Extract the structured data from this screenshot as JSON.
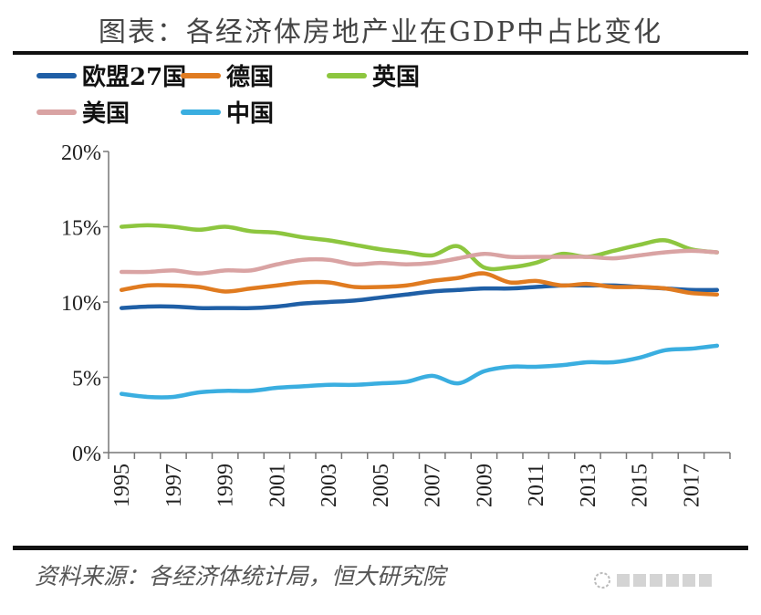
{
  "chart_data": {
    "type": "line",
    "title": "图表：各经济体房地产业在GDP中占比变化",
    "source": "资料来源：各经济体统计局，恒大研究院",
    "watermark": "夏磊地产观察",
    "x": [
      1995,
      1996,
      1997,
      1998,
      1999,
      2000,
      2001,
      2002,
      2003,
      2004,
      2005,
      2006,
      2007,
      2008,
      2009,
      2010,
      2011,
      2012,
      2013,
      2014,
      2015,
      2016,
      2017,
      2018
    ],
    "xtick_labels": [
      "1995",
      "1997",
      "1999",
      "2001",
      "2003",
      "2005",
      "2007",
      "2009",
      "2011",
      "2013",
      "2015",
      "2017"
    ],
    "ylim": [
      0,
      20
    ],
    "yticks": [
      "0%",
      "5%",
      "10%",
      "15%",
      "20%"
    ],
    "grid": false,
    "legend_position": "top",
    "series": [
      {
        "name": "欧盟27国",
        "color": "#1f5fa6",
        "values": [
          9.6,
          9.7,
          9.7,
          9.6,
          9.6,
          9.6,
          9.7,
          9.9,
          10.0,
          10.1,
          10.3,
          10.5,
          10.7,
          10.8,
          10.9,
          10.9,
          11.0,
          11.1,
          11.1,
          11.1,
          11.0,
          10.9,
          10.8,
          10.8
        ]
      },
      {
        "name": "德国",
        "color": "#e07b20",
        "values": [
          10.8,
          11.1,
          11.1,
          11.0,
          10.7,
          10.9,
          11.1,
          11.3,
          11.3,
          11.0,
          11.0,
          11.1,
          11.4,
          11.6,
          11.9,
          11.3,
          11.4,
          11.1,
          11.2,
          11.0,
          11.0,
          10.9,
          10.6,
          10.5
        ]
      },
      {
        "name": "英国",
        "color": "#8dc63f",
        "values": [
          15.0,
          15.1,
          15.0,
          14.8,
          15.0,
          14.7,
          14.6,
          14.3,
          14.1,
          13.8,
          13.5,
          13.3,
          13.1,
          13.7,
          12.3,
          12.3,
          12.6,
          13.2,
          13.0,
          13.4,
          13.8,
          14.1,
          13.5,
          13.3
        ]
      },
      {
        "name": "美国",
        "color": "#d9a3a3",
        "values": [
          12.0,
          12.0,
          12.1,
          11.9,
          12.1,
          12.1,
          12.5,
          12.8,
          12.8,
          12.5,
          12.6,
          12.5,
          12.6,
          12.9,
          13.2,
          13.0,
          13.0,
          13.0,
          13.0,
          12.9,
          13.1,
          13.3,
          13.4,
          13.3
        ]
      },
      {
        "name": "中国",
        "color": "#3aaee0",
        "values": [
          3.9,
          3.7,
          3.7,
          4.0,
          4.1,
          4.1,
          4.3,
          4.4,
          4.5,
          4.5,
          4.6,
          4.7,
          5.1,
          4.6,
          5.4,
          5.7,
          5.7,
          5.8,
          6.0,
          6.0,
          6.3,
          6.8,
          6.9,
          7.1
        ]
      }
    ]
  }
}
